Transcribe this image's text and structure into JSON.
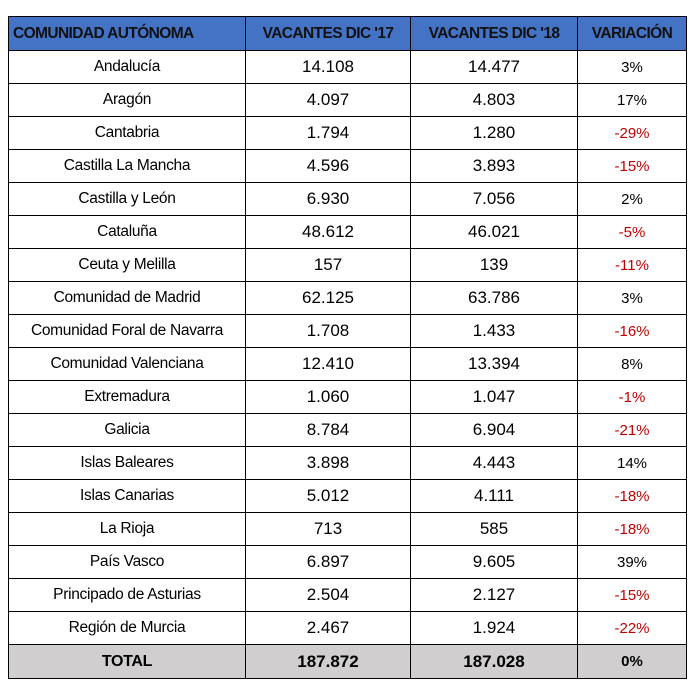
{
  "headers": [
    "COMUNIDAD AUTÓNOMA",
    "VACANTES DIC '17",
    "VACANTES DIC '18",
    "VARIACIÓN"
  ],
  "rows": [
    {
      "name": "Andalucía",
      "v17": "14.108",
      "v18": "14.477",
      "var": "3%"
    },
    {
      "name": "Aragón",
      "v17": "4.097",
      "v18": "4.803",
      "var": "17%"
    },
    {
      "name": "Cantabria",
      "v17": "1.794",
      "v18": "1.280",
      "var": "-29%"
    },
    {
      "name": "Castilla La Mancha",
      "v17": "4.596",
      "v18": "3.893",
      "var": "-15%"
    },
    {
      "name": "Castilla y León",
      "v17": "6.930",
      "v18": "7.056",
      "var": "2%"
    },
    {
      "name": "Cataluña",
      "v17": "48.612",
      "v18": "46.021",
      "var": "-5%"
    },
    {
      "name": "Ceuta y Melilla",
      "v17": "157",
      "v18": "139",
      "var": "-11%"
    },
    {
      "name": "Comunidad de Madrid",
      "v17": "62.125",
      "v18": "63.786",
      "var": "3%"
    },
    {
      "name": "Comunidad Foral de Navarra",
      "v17": "1.708",
      "v18": "1.433",
      "var": "-16%"
    },
    {
      "name": "Comunidad Valenciana",
      "v17": "12.410",
      "v18": "13.394",
      "var": "8%"
    },
    {
      "name": "Extremadura",
      "v17": "1.060",
      "v18": "1.047",
      "var": "-1%"
    },
    {
      "name": "Galicia",
      "v17": "8.784",
      "v18": "6.904",
      "var": "-21%"
    },
    {
      "name": "Islas Baleares",
      "v17": "3.898",
      "v18": "4.443",
      "var": "14%"
    },
    {
      "name": "Islas Canarias",
      "v17": "5.012",
      "v18": "4.111",
      "var": "-18%"
    },
    {
      "name": "La Rioja",
      "v17": "713",
      "v18": "585",
      "var": "-18%"
    },
    {
      "name": "País Vasco",
      "v17": "6.897",
      "v18": "9.605",
      "var": "39%"
    },
    {
      "name": "Principado de Asturias",
      "v17": "2.504",
      "v18": "2.127",
      "var": "-15%"
    },
    {
      "name": "Región de Murcia",
      "v17": "2.467",
      "v18": "1.924",
      "var": "-22%"
    }
  ],
  "total": {
    "name": "TOTAL",
    "v17": "187.872",
    "v18": "187.028",
    "var": "0%"
  },
  "colors": {
    "header": "#4472C4",
    "negative": "#C00000",
    "total": "#D0CECE"
  }
}
